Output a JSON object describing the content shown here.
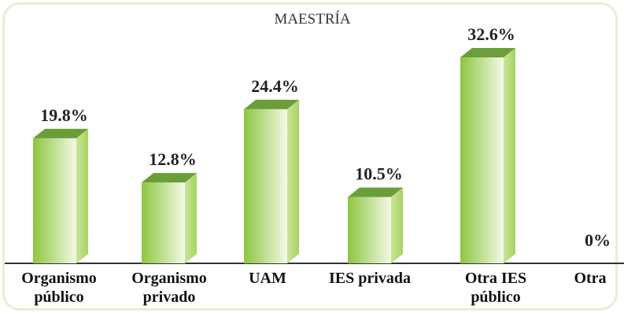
{
  "chart_data": {
    "type": "bar3d",
    "title": "MAESTRÍA",
    "categories": [
      "Organismo público",
      "Organismo privado",
      "UAM",
      "IES privada",
      "Otra IES público",
      "Otra"
    ],
    "values": [
      19.8,
      12.8,
      24.4,
      10.5,
      32.6,
      0
    ],
    "value_labels": [
      "19.8%",
      "12.8%",
      "24.4%",
      "10.5%",
      "32.6%",
      "0%"
    ],
    "color": "#8cc63f"
  }
}
